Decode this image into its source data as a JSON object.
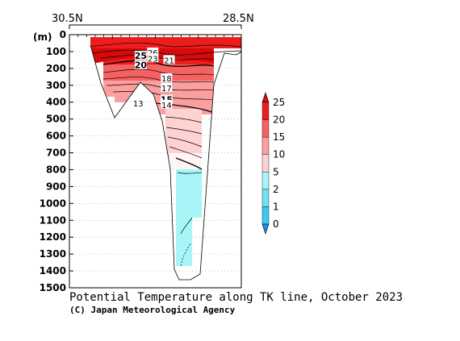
{
  "chart_data": {
    "type": "section",
    "title": "Potential Temperature along TK line, October 2023",
    "credit": "(C) Japan Meteorological Agency",
    "x_axis": {
      "left_label": "30.5N",
      "right_label": "28.5N",
      "range": [
        30.5,
        28.5
      ]
    },
    "y_axis": {
      "unit_label": "(m)",
      "range": [
        0,
        1500
      ],
      "ticks": [
        0,
        100,
        200,
        300,
        400,
        500,
        600,
        700,
        800,
        900,
        1000,
        1100,
        1200,
        1300,
        1400,
        1500
      ],
      "tick_labels": [
        "0",
        "100",
        "200",
        "300",
        "400",
        "500",
        "600",
        "700",
        "800",
        "900",
        "1000",
        "1100",
        "1200",
        "1300",
        "1400",
        "1500"
      ]
    },
    "colorbar": {
      "levels": [
        0,
        1,
        2,
        5,
        10,
        15,
        20,
        25
      ],
      "labels": [
        "0",
        "1",
        "2",
        "5",
        "10",
        "15",
        "20",
        "25"
      ],
      "colors": [
        "#1e90d8",
        "#3cc8ef",
        "#6fe3f3",
        "#a8f5f8",
        "#ffd2d2",
        "#fb9f9f",
        "#f56262",
        "#ee1d1d",
        "#d60a0a"
      ]
    },
    "contour_labels": [
      {
        "text": "25",
        "lat": 29.67,
        "depth": 125
      },
      {
        "text": "26",
        "lat": 29.53,
        "depth": 105
      },
      {
        "text": "23",
        "lat": 29.53,
        "depth": 140
      },
      {
        "text": "21",
        "lat": 29.34,
        "depth": 150
      },
      {
        "text": "20",
        "lat": 29.67,
        "depth": 180
      },
      {
        "text": "18",
        "lat": 29.37,
        "depth": 258
      },
      {
        "text": "17",
        "lat": 29.37,
        "depth": 315
      },
      {
        "text": "13",
        "lat": 29.7,
        "depth": 405
      },
      {
        "text": "15",
        "lat": 29.37,
        "depth": 385
      },
      {
        "text": "14",
        "lat": 29.37,
        "depth": 415
      }
    ],
    "grid": "dotted",
    "legend": "right"
  }
}
